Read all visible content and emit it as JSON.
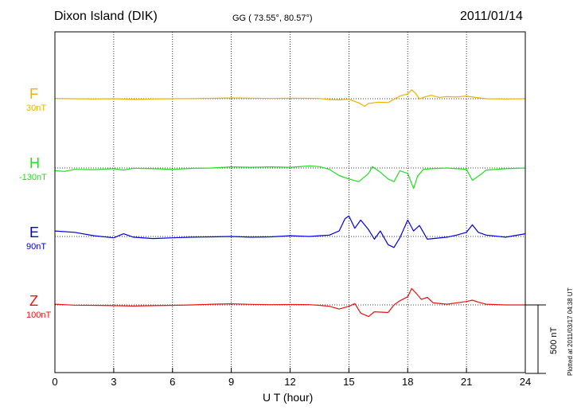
{
  "header": {
    "station": "Dixon Island (DIK)",
    "coordinates": "GG ( 73.55°,  80.57°)",
    "date": "2011/01/14"
  },
  "plotted_note": "Plotted at 2011/03/17 04:38 UT",
  "scale_bar_label": "500 nT",
  "chart_data": {
    "type": "line",
    "title": "Dixon Island (DIK)",
    "xlabel": "U T (hour)",
    "xlim": [
      0,
      24
    ],
    "x_ticks": [
      "0",
      "3",
      "6",
      "9",
      "12",
      "15",
      "18",
      "21",
      "24"
    ],
    "grid": true,
    "scale_bar_nT": 500,
    "series": [
      {
        "name": "F",
        "offset": "30nT",
        "color": "#f0b000",
        "points": [
          [
            0,
            2
          ],
          [
            1,
            0
          ],
          [
            2,
            -2
          ],
          [
            3,
            0
          ],
          [
            4,
            -5
          ],
          [
            5,
            -2
          ],
          [
            6,
            0
          ],
          [
            7,
            1
          ],
          [
            8,
            3
          ],
          [
            9,
            6
          ],
          [
            10,
            4
          ],
          [
            11,
            2
          ],
          [
            12,
            4
          ],
          [
            13,
            3
          ],
          [
            13.5,
            2
          ],
          [
            14,
            -6
          ],
          [
            14.5,
            -8
          ],
          [
            15,
            -4
          ],
          [
            15.5,
            -30
          ],
          [
            15.8,
            -55
          ],
          [
            16,
            -35
          ],
          [
            16.5,
            -25
          ],
          [
            17,
            -28
          ],
          [
            17.3,
            -5
          ],
          [
            17.6,
            20
          ],
          [
            18,
            35
          ],
          [
            18.2,
            65
          ],
          [
            18.4,
            40
          ],
          [
            18.6,
            -2
          ],
          [
            18.9,
            15
          ],
          [
            19.2,
            25
          ],
          [
            19.6,
            10
          ],
          [
            20,
            15
          ],
          [
            20.5,
            12
          ],
          [
            21,
            20
          ],
          [
            21.3,
            12
          ],
          [
            21.7,
            5
          ],
          [
            22,
            0
          ],
          [
            23,
            -2
          ],
          [
            24,
            0
          ]
        ]
      },
      {
        "name": "H",
        "offset": "-130nT",
        "color": "#22dd22",
        "points": [
          [
            0,
            -20
          ],
          [
            0.5,
            -25
          ],
          [
            1,
            -10
          ],
          [
            2,
            -12
          ],
          [
            3,
            -5
          ],
          [
            3.5,
            -15
          ],
          [
            4,
            -2
          ],
          [
            5,
            -5
          ],
          [
            6,
            -10
          ],
          [
            7,
            -3
          ],
          [
            8,
            0
          ],
          [
            9,
            8
          ],
          [
            10,
            5
          ],
          [
            11,
            8
          ],
          [
            12,
            5
          ],
          [
            13,
            15
          ],
          [
            13.5,
            10
          ],
          [
            14,
            -10
          ],
          [
            14.5,
            -55
          ],
          [
            15,
            -80
          ],
          [
            15.5,
            -100
          ],
          [
            16,
            -40
          ],
          [
            16.2,
            10
          ],
          [
            16.6,
            -30
          ],
          [
            17,
            -80
          ],
          [
            17.3,
            -100
          ],
          [
            17.6,
            -20
          ],
          [
            18,
            -40
          ],
          [
            18.3,
            -150
          ],
          [
            18.5,
            -60
          ],
          [
            18.8,
            -10
          ],
          [
            19.2,
            -5
          ],
          [
            20,
            0
          ],
          [
            21,
            -10
          ],
          [
            21.3,
            -90
          ],
          [
            21.7,
            -50
          ],
          [
            22,
            -15
          ],
          [
            23,
            -5
          ],
          [
            24,
            0
          ]
        ]
      },
      {
        "name": "E",
        "offset": "90nT",
        "color": "#0000dd",
        "points": [
          [
            0,
            40
          ],
          [
            1,
            30
          ],
          [
            2,
            5
          ],
          [
            3,
            -10
          ],
          [
            3.5,
            20
          ],
          [
            4,
            -5
          ],
          [
            5,
            -15
          ],
          [
            6,
            -10
          ],
          [
            7,
            -5
          ],
          [
            8,
            -3
          ],
          [
            9,
            0
          ],
          [
            10,
            -5
          ],
          [
            11,
            -3
          ],
          [
            12,
            5
          ],
          [
            13,
            0
          ],
          [
            13.5,
            5
          ],
          [
            14,
            10
          ],
          [
            14.5,
            40
          ],
          [
            14.8,
            130
          ],
          [
            15,
            150
          ],
          [
            15.3,
            60
          ],
          [
            15.6,
            120
          ],
          [
            16,
            50
          ],
          [
            16.3,
            -20
          ],
          [
            16.6,
            40
          ],
          [
            17,
            -60
          ],
          [
            17.3,
            -80
          ],
          [
            17.6,
            -10
          ],
          [
            18,
            120
          ],
          [
            18.3,
            40
          ],
          [
            18.6,
            80
          ],
          [
            19,
            -20
          ],
          [
            20,
            -5
          ],
          [
            20.5,
            10
          ],
          [
            21,
            30
          ],
          [
            21.3,
            85
          ],
          [
            21.6,
            30
          ],
          [
            22,
            10
          ],
          [
            23,
            -5
          ],
          [
            24,
            20
          ]
        ]
      },
      {
        "name": "Z",
        "offset": "100nT",
        "color": "#ee1111",
        "points": [
          [
            0,
            5
          ],
          [
            1,
            -2
          ],
          [
            2,
            -3
          ],
          [
            3,
            -5
          ],
          [
            4,
            -8
          ],
          [
            5,
            -5
          ],
          [
            6,
            -3
          ],
          [
            7,
            0
          ],
          [
            8,
            5
          ],
          [
            9,
            8
          ],
          [
            10,
            4
          ],
          [
            11,
            2
          ],
          [
            12,
            3
          ],
          [
            13,
            2
          ],
          [
            13.5,
            -3
          ],
          [
            14,
            -10
          ],
          [
            14.5,
            -30
          ],
          [
            15,
            -10
          ],
          [
            15.3,
            10
          ],
          [
            15.6,
            -60
          ],
          [
            16,
            -85
          ],
          [
            16.3,
            -50
          ],
          [
            17,
            -55
          ],
          [
            17.3,
            0
          ],
          [
            17.6,
            30
          ],
          [
            18,
            60
          ],
          [
            18.2,
            120
          ],
          [
            18.4,
            90
          ],
          [
            18.7,
            40
          ],
          [
            19,
            55
          ],
          [
            19.3,
            15
          ],
          [
            20,
            5
          ],
          [
            21,
            25
          ],
          [
            21.3,
            35
          ],
          [
            21.6,
            20
          ],
          [
            22,
            5
          ],
          [
            23,
            0
          ],
          [
            24,
            0
          ]
        ]
      }
    ]
  }
}
